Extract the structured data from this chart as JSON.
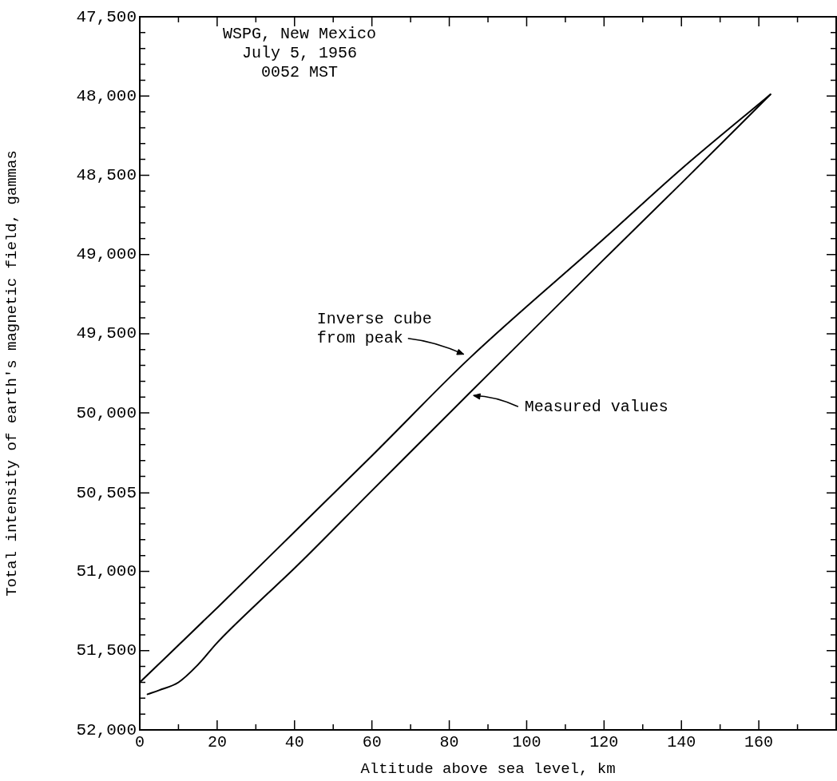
{
  "chart_data": {
    "type": "line",
    "xlabel": "Altitude above sea level, km",
    "ylabel": "Total intensity of earth's magnetic field, gammas",
    "annotations": [
      "WSPG, New Mexico",
      "July 5, 1956",
      "0052 MST"
    ],
    "series": [
      {
        "name": "Inverse cube from peak",
        "color": "#000000",
        "x": [
          0,
          20,
          40,
          60,
          85,
          120,
          140,
          163
        ],
        "values": [
          51700,
          51230,
          50750,
          50270,
          49660,
          48900,
          48460,
          47990
        ]
      },
      {
        "name": "Measured values",
        "color": "#000000",
        "x": [
          2,
          5,
          10,
          15,
          20,
          30,
          40,
          60,
          85,
          120,
          140,
          163
        ],
        "values": [
          51775,
          51750,
          51700,
          51590,
          51450,
          51210,
          50980,
          50490,
          49880,
          49030,
          48550,
          47990
        ]
      }
    ],
    "xlim": [
      0,
      180
    ],
    "xticks": [
      0,
      {
        "value": 10,
        "label": null
      },
      20,
      {
        "value": 30,
        "label": null
      },
      40,
      {
        "value": 50,
        "label": null
      },
      60,
      {
        "value": 70,
        "label": null
      },
      80,
      {
        "value": 90,
        "label": null
      },
      100,
      {
        "value": 110,
        "label": null
      },
      120,
      {
        "value": 130,
        "label": null
      },
      140,
      {
        "value": 150,
        "label": null
      },
      160,
      {
        "value": 170,
        "label": null
      }
    ],
    "ylim": [
      52000,
      47500
    ],
    "yticks": [
      {
        "value": 52000,
        "label": "52,000"
      },
      {
        "value": 51900,
        "label": null
      },
      {
        "value": 51800,
        "label": null
      },
      {
        "value": 51700,
        "label": null
      },
      {
        "value": 51600,
        "label": null
      },
      {
        "value": 51500,
        "label": "51,500"
      },
      {
        "value": 51400,
        "label": null
      },
      {
        "value": 51300,
        "label": null
      },
      {
        "value": 51200,
        "label": null
      },
      {
        "value": 51100,
        "label": null
      },
      {
        "value": 51000,
        "label": "51,000"
      },
      {
        "value": 50900,
        "label": null
      },
      {
        "value": 50800,
        "label": null
      },
      {
        "value": 50700,
        "label": null
      },
      {
        "value": 50600,
        "label": null
      },
      {
        "value": 50505,
        "label": "50,505"
      },
      {
        "value": 50400,
        "label": null
      },
      {
        "value": 50300,
        "label": null
      },
      {
        "value": 50200,
        "label": null
      },
      {
        "value": 50100,
        "label": null
      },
      {
        "value": 50000,
        "label": "50,000"
      },
      {
        "value": 49900,
        "label": null
      },
      {
        "value": 49800,
        "label": null
      },
      {
        "value": 49700,
        "label": null
      },
      {
        "value": 49600,
        "label": null
      },
      {
        "value": 49500,
        "label": "49,500"
      },
      {
        "value": 49400,
        "label": null
      },
      {
        "value": 49300,
        "label": null
      },
      {
        "value": 49200,
        "label": null
      },
      {
        "value": 49100,
        "label": null
      },
      {
        "value": 49000,
        "label": "49,000"
      },
      {
        "value": 48900,
        "label": null
      },
      {
        "value": 48800,
        "label": null
      },
      {
        "value": 48700,
        "label": null
      },
      {
        "value": 48600,
        "label": null
      },
      {
        "value": 48500,
        "label": "48,500"
      },
      {
        "value": 48400,
        "label": null
      },
      {
        "value": 48300,
        "label": null
      },
      {
        "value": 48200,
        "label": null
      },
      {
        "value": 48100,
        "label": null
      },
      {
        "value": 48000,
        "label": "48,000"
      },
      {
        "value": 47900,
        "label": null
      },
      {
        "value": 47800,
        "label": null
      },
      {
        "value": 47700,
        "label": null
      },
      {
        "value": 47600,
        "label": null
      },
      {
        "value": 47500,
        "label": "47,500"
      }
    ],
    "grid": false,
    "marker": "none",
    "line_style": "solid"
  }
}
